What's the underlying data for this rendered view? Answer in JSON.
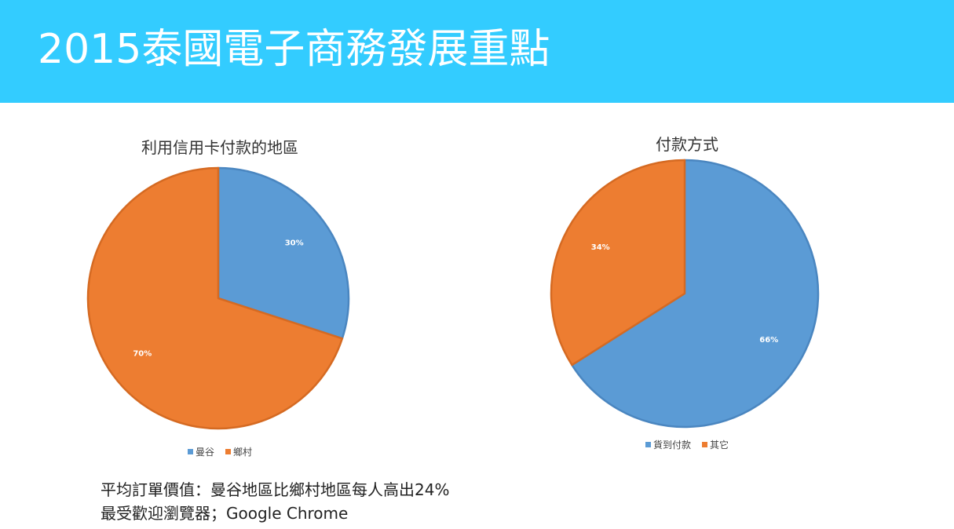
{
  "slide": {
    "title": "2015泰國電子商務發展重點"
  },
  "colors": {
    "header_bg": "#33ccff",
    "blue": "#5b9bd5",
    "orange": "#ed7d31"
  },
  "chart_data": [
    {
      "type": "pie",
      "title": "利用信用卡付款的地區",
      "categories": [
        "曼谷",
        "鄉村"
      ],
      "values": [
        30,
        70
      ],
      "labels": [
        "30%",
        "70%"
      ],
      "colors": [
        "#5b9bd5",
        "#ed7d31"
      ],
      "legend": "bottom"
    },
    {
      "type": "pie",
      "title": "付款方式",
      "categories": [
        "貨到付款",
        "其它"
      ],
      "values": [
        66,
        34
      ],
      "labels": [
        "66%",
        "34%"
      ],
      "colors": [
        "#5b9bd5",
        "#ed7d31"
      ],
      "legend": "bottom"
    }
  ],
  "notes": {
    "line1": "平均訂單價值：曼谷地區比鄉村地區每人高出24%",
    "line2": "最受歡迎瀏覽器；Google Chrome"
  }
}
